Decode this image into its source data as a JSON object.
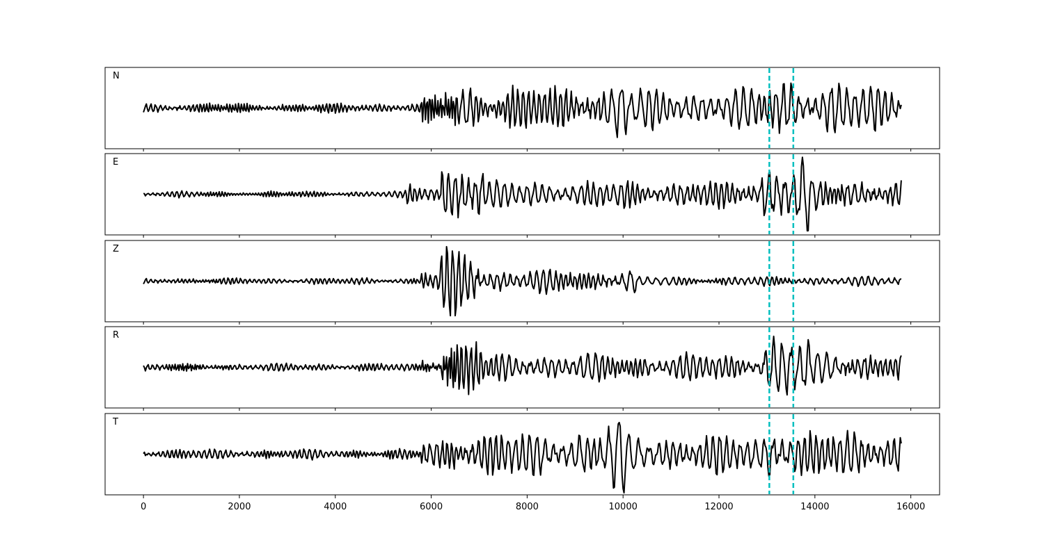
{
  "chart_data": {
    "type": "line",
    "xlim": [
      -800,
      16600
    ],
    "x_ticks": [
      0,
      2000,
      4000,
      6000,
      8000,
      10000,
      12000,
      14000,
      16000
    ],
    "x_tick_labels": [
      "0",
      "2000",
      "4000",
      "6000",
      "8000",
      "10000",
      "12000",
      "14000",
      "16000"
    ],
    "y_ticks_shown": false,
    "grid": false,
    "trace_color": "#000000",
    "pick_color": "#00bfbf",
    "picks": [
      13050,
      13550
    ],
    "samples": 15800,
    "panels": [
      {
        "label": "N",
        "seed": 11,
        "ylim": [
          -1.15,
          1.15
        ],
        "segments": [
          {
            "start": 0,
            "end": 5800,
            "amp": 0.13,
            "period": 85
          },
          {
            "start": 5800,
            "end": 6300,
            "amp": 0.35,
            "period": 120
          },
          {
            "start": 6300,
            "end": 9800,
            "amp": 0.58,
            "period": 150
          },
          {
            "start": 9800,
            "end": 10100,
            "amp": 0.95,
            "period": 170
          },
          {
            "start": 10100,
            "end": 13000,
            "amp": 0.52,
            "period": 140
          },
          {
            "start": 13000,
            "end": 13600,
            "amp": 0.8,
            "period": 130
          },
          {
            "start": 13600,
            "end": 15800,
            "amp": 0.62,
            "period": 130
          }
        ]
      },
      {
        "label": "E",
        "seed": 23,
        "ylim": [
          -1.15,
          1.15
        ],
        "segments": [
          {
            "start": 0,
            "end": 5500,
            "amp": 0.08,
            "period": 85
          },
          {
            "start": 5500,
            "end": 6200,
            "amp": 0.25,
            "period": 110
          },
          {
            "start": 6200,
            "end": 7100,
            "amp": 0.9,
            "period": 140
          },
          {
            "start": 7100,
            "end": 12900,
            "amp": 0.35,
            "period": 130
          },
          {
            "start": 12900,
            "end": 13300,
            "amp": 0.85,
            "period": 150
          },
          {
            "start": 13300,
            "end": 13900,
            "amp": 0.95,
            "period": 150
          },
          {
            "start": 13900,
            "end": 15800,
            "amp": 0.38,
            "period": 130
          }
        ]
      },
      {
        "label": "Z",
        "seed": 37,
        "ylim": [
          -1.15,
          1.15
        ],
        "segments": [
          {
            "start": 0,
            "end": 5800,
            "amp": 0.08,
            "period": 85
          },
          {
            "start": 5800,
            "end": 6200,
            "amp": 0.3,
            "period": 110
          },
          {
            "start": 6200,
            "end": 7000,
            "amp": 0.85,
            "period": 140
          },
          {
            "start": 7000,
            "end": 10300,
            "amp": 0.3,
            "period": 130
          },
          {
            "start": 10300,
            "end": 15800,
            "amp": 0.12,
            "period": 110
          }
        ]
      },
      {
        "label": "R",
        "seed": 51,
        "ylim": [
          -1.15,
          1.15
        ],
        "segments": [
          {
            "start": 0,
            "end": 5800,
            "amp": 0.1,
            "period": 85
          },
          {
            "start": 5800,
            "end": 6200,
            "amp": 0.25,
            "period": 110
          },
          {
            "start": 6200,
            "end": 7100,
            "amp": 0.85,
            "period": 140
          },
          {
            "start": 7100,
            "end": 12900,
            "amp": 0.35,
            "period": 130
          },
          {
            "start": 12900,
            "end": 13900,
            "amp": 0.8,
            "period": 150
          },
          {
            "start": 13900,
            "end": 15800,
            "amp": 0.4,
            "period": 130
          }
        ]
      },
      {
        "label": "T",
        "seed": 67,
        "ylim": [
          -1.15,
          1.15
        ],
        "segments": [
          {
            "start": 0,
            "end": 5800,
            "amp": 0.13,
            "period": 85
          },
          {
            "start": 5800,
            "end": 6300,
            "amp": 0.4,
            "period": 120
          },
          {
            "start": 6300,
            "end": 9700,
            "amp": 0.6,
            "period": 150
          },
          {
            "start": 9700,
            "end": 10100,
            "amp": 0.95,
            "period": 170
          },
          {
            "start": 10100,
            "end": 13000,
            "amp": 0.5,
            "period": 140
          },
          {
            "start": 13000,
            "end": 13600,
            "amp": 0.85,
            "period": 130
          },
          {
            "start": 13600,
            "end": 15800,
            "amp": 0.6,
            "period": 130
          }
        ]
      }
    ]
  }
}
